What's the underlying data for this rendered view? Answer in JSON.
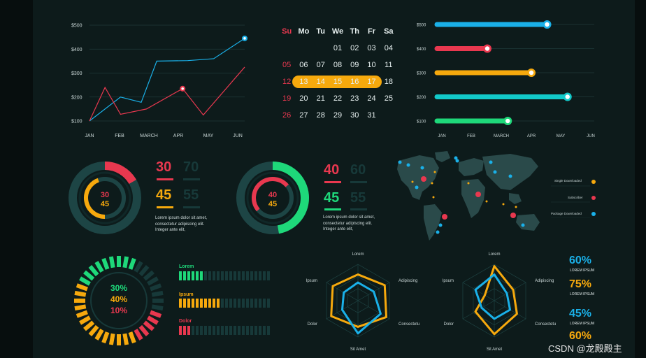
{
  "colors": {
    "bg": "#0d1b1b",
    "cyan": "#1ab0e8",
    "red": "#e8384f",
    "orange": "#f6a90d",
    "teal": "#12c9c9",
    "green": "#1ed87a",
    "dim": "#173939"
  },
  "line_chart": {
    "y_ticks": [
      "$500",
      "$400",
      "$300",
      "$200",
      "$100"
    ],
    "x_ticks": [
      "JAN",
      "FEB",
      "MARCH",
      "APR",
      "MAY",
      "JUN"
    ],
    "chart_data": {
      "type": "line",
      "categories": [
        "JAN",
        "FEB",
        "MARCH",
        "APR",
        "MAY",
        "JUN"
      ],
      "x": [
        0,
        0.6,
        1.2,
        2,
        2.7,
        3.6,
        4.8,
        6.0
      ],
      "series": [
        {
          "color": "#1ab0e8",
          "points": [
            [
              0,
              100
            ],
            [
              1.2,
              200
            ],
            [
              2,
              178
            ],
            [
              2.6,
              350
            ],
            [
              3.8,
              352
            ],
            [
              4.8,
              360
            ],
            [
              6,
              445
            ]
          ]
        },
        {
          "color": "#e8384f",
          "points": [
            [
              0,
              100
            ],
            [
              0.6,
              240
            ],
            [
              1.2,
              128
            ],
            [
              2.2,
              150
            ],
            [
              3.6,
              235
            ],
            [
              4.4,
              125
            ],
            [
              6,
              325
            ]
          ]
        }
      ],
      "ylim": [
        100,
        500
      ]
    }
  },
  "calendar": {
    "headers": [
      "Su",
      "Mo",
      "Tu",
      "We",
      "Th",
      "Fr",
      "Sa"
    ],
    "weeks": [
      [
        "",
        "",
        "",
        "01",
        "02",
        "03",
        "04"
      ],
      [
        "05",
        "06",
        "07",
        "08",
        "09",
        "10",
        "11"
      ],
      [
        "12",
        "13",
        "14",
        "15",
        "16",
        "17",
        "18"
      ],
      [
        "19",
        "20",
        "21",
        "22",
        "23",
        "24",
        "25"
      ],
      [
        "26",
        "27",
        "28",
        "29",
        "30",
        "31",
        ""
      ]
    ]
  },
  "hbar_chart": {
    "y_ticks": [
      "$500",
      "$400",
      "$300",
      "$200",
      "$100"
    ],
    "x_ticks": [
      "JAN",
      "FEB",
      "MARCH",
      "APR",
      "MAY",
      "JUN"
    ],
    "chart_data": {
      "type": "bar",
      "categories": [
        "$500",
        "$400",
        "$300",
        "$200",
        "$100"
      ],
      "values": [
        0.7,
        0.32,
        0.6,
        0.83,
        0.45
      ],
      "colors": [
        "#1ab0e8",
        "#e8384f",
        "#f6a90d",
        "#12c9c9",
        "#1ed87a"
      ]
    }
  },
  "donut1": {
    "inner_a": "30",
    "inner_b": "45",
    "stat_a": "30",
    "stat_a_dim": "70",
    "stat_b": "45",
    "stat_b_dim": "55",
    "text": "Lorem ipsum dolor sit amet, consectetur adipiscing elit. Integer ante elit,"
  },
  "donut2": {
    "inner_a": "40",
    "inner_b": "45",
    "stat_a": "40",
    "stat_a_dim": "60",
    "stat_b": "45",
    "stat_b_dim": "55",
    "text": "Lorem ipsum dolor sit amet, consectetur adipiscing elit. Integer ante elit,"
  },
  "map_legend": [
    {
      "label": "Single Downloaded",
      "color": "#f6a90d"
    },
    {
      "label": "Subscriber",
      "color": "#e8384f"
    },
    {
      "label": "Package Downloaded",
      "color": "#1ab0e8"
    }
  ],
  "radial": {
    "a": "30%",
    "b": "40%",
    "c": "10%"
  },
  "seg_bars": [
    {
      "label": "Lorem",
      "color": "#1ed87a",
      "filled": 6
    },
    {
      "label": "Ipsum",
      "color": "#f6a90d",
      "filled": 10
    },
    {
      "label": "Dolor",
      "color": "#e8384f",
      "filled": 3
    }
  ],
  "radar_labels": [
    "Lorem",
    "Adipiscing",
    "Consectetur",
    "Sit Amet",
    "Dolor",
    "Ipsum"
  ],
  "percents": [
    {
      "value": "60%",
      "label": "LOREM IPSUM",
      "color": "#1ab0e8"
    },
    {
      "value": "75%",
      "label": "LOREM IPSUM",
      "color": "#f6a90d"
    },
    {
      "value": "45%",
      "label": "LOREM IPSUM",
      "color": "#1ab0e8"
    },
    {
      "value": "60%",
      "label": "",
      "color": "#f6a90d"
    }
  ],
  "watermark": "CSDN @龙殿殿主"
}
